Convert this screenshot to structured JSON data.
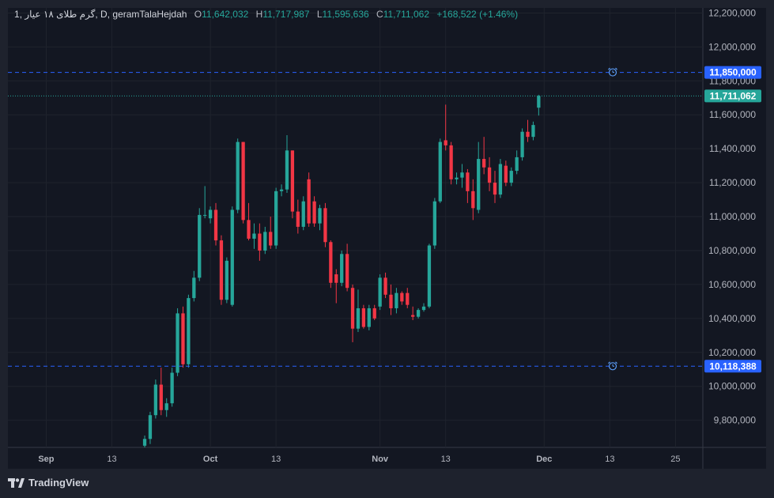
{
  "header": {
    "interval": "1",
    "symbol": "گرم طلای ۱۸ عیار",
    "timeframe": "D",
    "source": "geramTalaHejdah",
    "open_label": "O",
    "open": "11,642,032",
    "high_label": "H",
    "high": "11,717,987",
    "low_label": "L",
    "low": "11,595,636",
    "close_label": "C",
    "close": "11,711,062",
    "change": "+168,522 (+1.46%)"
  },
  "brand": {
    "name": "TradingView"
  },
  "colors": {
    "background": "#131722",
    "up": "#26a69a",
    "down": "#f23645",
    "alert_line": "#2962ff",
    "alert_label": "#2962ff",
    "price_label": "#26a69a"
  },
  "chart_data": {
    "type": "candlestick",
    "y_axis": {
      "ticks": [
        "12,200,000",
        "12,000,000",
        "11,800,000",
        "11,600,000",
        "11,400,000",
        "11,200,000",
        "11,000,000",
        "10,800,000",
        "10,600,000",
        "10,400,000",
        "10,200,000",
        "10,000,000",
        "9,800,000"
      ],
      "tick_values": [
        12200000,
        12000000,
        11800000,
        11600000,
        11400000,
        11200000,
        11000000,
        10800000,
        10600000,
        10400000,
        10200000,
        10000000,
        9800000
      ],
      "range": [
        9640000,
        12230000
      ]
    },
    "x_axis": {
      "ticks": [
        {
          "label": "Sep",
          "date": "2023-09-01"
        },
        {
          "label": "13",
          "date": "2023-09-13"
        },
        {
          "label": "Oct",
          "date": "2023-10-01"
        },
        {
          "label": "13",
          "date": "2023-10-13"
        },
        {
          "label": "Nov",
          "date": "2023-11-01"
        },
        {
          "label": "13",
          "date": "2023-11-13"
        },
        {
          "label": "Dec",
          "date": "2023-12-01"
        },
        {
          "label": "13",
          "date": "2023-12-13"
        },
        {
          "label": "25",
          "date": "2023-12-25"
        }
      ],
      "range": [
        "2023-08-25",
        "2023-12-30"
      ]
    },
    "alert_lines": [
      {
        "value": 11850000,
        "label": "11,850,000"
      },
      {
        "value": 10118388,
        "label": "10,118,388"
      }
    ],
    "last_price": {
      "value": 11711062,
      "label": "11,711,062"
    },
    "candles": [
      {
        "d": "2023-09-19",
        "o": 9650000,
        "h": 9710000,
        "l": 9640000,
        "c": 9690000
      },
      {
        "d": "2023-09-20",
        "o": 9690000,
        "h": 9850000,
        "l": 9660000,
        "c": 9830000
      },
      {
        "d": "2023-09-21",
        "o": 9830000,
        "h": 10040000,
        "l": 9810000,
        "c": 10010000
      },
      {
        "d": "2023-09-22",
        "o": 10010000,
        "h": 10110000,
        "l": 9830000,
        "c": 9860000
      },
      {
        "d": "2023-09-23",
        "o": 9860000,
        "h": 9930000,
        "l": 9820000,
        "c": 9900000
      },
      {
        "d": "2023-09-24",
        "o": 9900000,
        "h": 10110000,
        "l": 9880000,
        "c": 10080000
      },
      {
        "d": "2023-09-25",
        "o": 10080000,
        "h": 10460000,
        "l": 10060000,
        "c": 10430000
      },
      {
        "d": "2023-09-26",
        "o": 10430000,
        "h": 10470000,
        "l": 10110000,
        "c": 10130000
      },
      {
        "d": "2023-09-27",
        "o": 10130000,
        "h": 10540000,
        "l": 10110000,
        "c": 10520000
      },
      {
        "d": "2023-09-28",
        "o": 10520000,
        "h": 10680000,
        "l": 10500000,
        "c": 10640000
      },
      {
        "d": "2023-09-29",
        "o": 10640000,
        "h": 11050000,
        "l": 10620000,
        "c": 11010000
      },
      {
        "d": "2023-09-30",
        "o": 11010000,
        "h": 11180000,
        "l": 10990000,
        "c": 11010000
      },
      {
        "d": "2023-10-01",
        "o": 10990000,
        "h": 11060000,
        "l": 10960000,
        "c": 11040000
      },
      {
        "d": "2023-10-02",
        "o": 11040000,
        "h": 11080000,
        "l": 10830000,
        "c": 10860000
      },
      {
        "d": "2023-10-03",
        "o": 10860000,
        "h": 10890000,
        "l": 10480000,
        "c": 10510000
      },
      {
        "d": "2023-10-04",
        "o": 10510000,
        "h": 10760000,
        "l": 10490000,
        "c": 10740000
      },
      {
        "d": "2023-10-05",
        "o": 10480000,
        "h": 11060000,
        "l": 10470000,
        "c": 11040000
      },
      {
        "d": "2023-10-06",
        "o": 11040000,
        "h": 11460000,
        "l": 11020000,
        "c": 11440000
      },
      {
        "d": "2023-10-07",
        "o": 11440000,
        "h": 11440000,
        "l": 10960000,
        "c": 10980000
      },
      {
        "d": "2023-10-08",
        "o": 10980000,
        "h": 11080000,
        "l": 10860000,
        "c": 10870000
      },
      {
        "d": "2023-10-09",
        "o": 10870000,
        "h": 10960000,
        "l": 10810000,
        "c": 10900000
      },
      {
        "d": "2023-10-10",
        "o": 10900000,
        "h": 10960000,
        "l": 10740000,
        "c": 10800000
      },
      {
        "d": "2023-10-11",
        "o": 10800000,
        "h": 10940000,
        "l": 10780000,
        "c": 10910000
      },
      {
        "d": "2023-10-12",
        "o": 10910000,
        "h": 11000000,
        "l": 10810000,
        "c": 10830000
      },
      {
        "d": "2023-10-13",
        "o": 10830000,
        "h": 11170000,
        "l": 10810000,
        "c": 11150000
      },
      {
        "d": "2023-10-14",
        "o": 11150000,
        "h": 11190000,
        "l": 11120000,
        "c": 11160000
      },
      {
        "d": "2023-10-15",
        "o": 11160000,
        "h": 11480000,
        "l": 11140000,
        "c": 11390000
      },
      {
        "d": "2023-10-16",
        "o": 11390000,
        "h": 11390000,
        "l": 10990000,
        "c": 11030000
      },
      {
        "d": "2023-10-17",
        "o": 11030000,
        "h": 11100000,
        "l": 10900000,
        "c": 10940000
      },
      {
        "d": "2023-10-18",
        "o": 10940000,
        "h": 11120000,
        "l": 10920000,
        "c": 11090000
      },
      {
        "d": "2023-10-19",
        "o": 11220000,
        "h": 11260000,
        "l": 10940000,
        "c": 10960000
      },
      {
        "d": "2023-10-20",
        "o": 11090000,
        "h": 11120000,
        "l": 10940000,
        "c": 10960000
      },
      {
        "d": "2023-10-21",
        "o": 10960000,
        "h": 11070000,
        "l": 10920000,
        "c": 11050000
      },
      {
        "d": "2023-10-22",
        "o": 11050000,
        "h": 11080000,
        "l": 10820000,
        "c": 10850000
      },
      {
        "d": "2023-10-23",
        "o": 10850000,
        "h": 10860000,
        "l": 10580000,
        "c": 10610000
      },
      {
        "d": "2023-10-24",
        "o": 10660000,
        "h": 10690000,
        "l": 10490000,
        "c": 10610000
      },
      {
        "d": "2023-10-25",
        "o": 10610000,
        "h": 10800000,
        "l": 10590000,
        "c": 10780000
      },
      {
        "d": "2023-10-26",
        "o": 10780000,
        "h": 10840000,
        "l": 10560000,
        "c": 10580000
      },
      {
        "d": "2023-10-27",
        "o": 10580000,
        "h": 10600000,
        "l": 10260000,
        "c": 10340000
      },
      {
        "d": "2023-10-28",
        "o": 10340000,
        "h": 10570000,
        "l": 10320000,
        "c": 10460000
      },
      {
        "d": "2023-10-29",
        "o": 10460000,
        "h": 10480000,
        "l": 10340000,
        "c": 10350000
      },
      {
        "d": "2023-10-30",
        "o": 10350000,
        "h": 10480000,
        "l": 10330000,
        "c": 10460000
      },
      {
        "d": "2023-10-31",
        "o": 10460000,
        "h": 10480000,
        "l": 10390000,
        "c": 10400000
      },
      {
        "d": "2023-11-01",
        "o": 10470000,
        "h": 10660000,
        "l": 10450000,
        "c": 10640000
      },
      {
        "d": "2023-11-02",
        "o": 10640000,
        "h": 10670000,
        "l": 10520000,
        "c": 10540000
      },
      {
        "d": "2023-11-03",
        "o": 10540000,
        "h": 10600000,
        "l": 10420000,
        "c": 10460000
      },
      {
        "d": "2023-11-04",
        "o": 10460000,
        "h": 10580000,
        "l": 10430000,
        "c": 10550000
      },
      {
        "d": "2023-11-05",
        "o": 10550000,
        "h": 10560000,
        "l": 10480000,
        "c": 10500000
      },
      {
        "d": "2023-11-06",
        "o": 10550000,
        "h": 10580000,
        "l": 10460000,
        "c": 10480000
      },
      {
        "d": "2023-11-07",
        "o": 10420000,
        "h": 10470000,
        "l": 10390000,
        "c": 10410000
      },
      {
        "d": "2023-11-08",
        "o": 10410000,
        "h": 10460000,
        "l": 10400000,
        "c": 10450000
      },
      {
        "d": "2023-11-09",
        "o": 10450000,
        "h": 10490000,
        "l": 10440000,
        "c": 10470000
      },
      {
        "d": "2023-11-10",
        "o": 10470000,
        "h": 10840000,
        "l": 10460000,
        "c": 10830000
      },
      {
        "d": "2023-11-11",
        "o": 10830000,
        "h": 11110000,
        "l": 10810000,
        "c": 11090000
      },
      {
        "d": "2023-11-12",
        "o": 11090000,
        "h": 11460000,
        "l": 11080000,
        "c": 11440000
      },
      {
        "d": "2023-11-13",
        "o": 11450000,
        "h": 11660000,
        "l": 11390000,
        "c": 11420000
      },
      {
        "d": "2023-11-14",
        "o": 11420000,
        "h": 11440000,
        "l": 11190000,
        "c": 11220000
      },
      {
        "d": "2023-11-15",
        "o": 11220000,
        "h": 11260000,
        "l": 11190000,
        "c": 11230000
      },
      {
        "d": "2023-11-16",
        "o": 11230000,
        "h": 11310000,
        "l": 11170000,
        "c": 11260000
      },
      {
        "d": "2023-11-17",
        "o": 11260000,
        "h": 11280000,
        "l": 11080000,
        "c": 11150000
      },
      {
        "d": "2023-11-18",
        "o": 11150000,
        "h": 11220000,
        "l": 10980000,
        "c": 11050000
      },
      {
        "d": "2023-11-19",
        "o": 11040000,
        "h": 11440000,
        "l": 11020000,
        "c": 11340000
      },
      {
        "d": "2023-11-20",
        "o": 11340000,
        "h": 11470000,
        "l": 11250000,
        "c": 11290000
      },
      {
        "d": "2023-11-21",
        "o": 11290000,
        "h": 11350000,
        "l": 11150000,
        "c": 11200000
      },
      {
        "d": "2023-11-22",
        "o": 11200000,
        "h": 11270000,
        "l": 11080000,
        "c": 11130000
      },
      {
        "d": "2023-11-23",
        "o": 11130000,
        "h": 11340000,
        "l": 11110000,
        "c": 11310000
      },
      {
        "d": "2023-11-24",
        "o": 11300000,
        "h": 11330000,
        "l": 11180000,
        "c": 11200000
      },
      {
        "d": "2023-11-25",
        "o": 11200000,
        "h": 11290000,
        "l": 11180000,
        "c": 11270000
      },
      {
        "d": "2023-11-26",
        "o": 11270000,
        "h": 11390000,
        "l": 11250000,
        "c": 11350000
      },
      {
        "d": "2023-11-27",
        "o": 11350000,
        "h": 11520000,
        "l": 11330000,
        "c": 11500000
      },
      {
        "d": "2023-11-28",
        "o": 11500000,
        "h": 11570000,
        "l": 11440000,
        "c": 11470000
      },
      {
        "d": "2023-11-29",
        "o": 11470000,
        "h": 11560000,
        "l": 11450000,
        "c": 11540000
      },
      {
        "d": "2023-11-30",
        "o": 11642032,
        "h": 11717987,
        "l": 11595636,
        "c": 11711062
      }
    ]
  }
}
